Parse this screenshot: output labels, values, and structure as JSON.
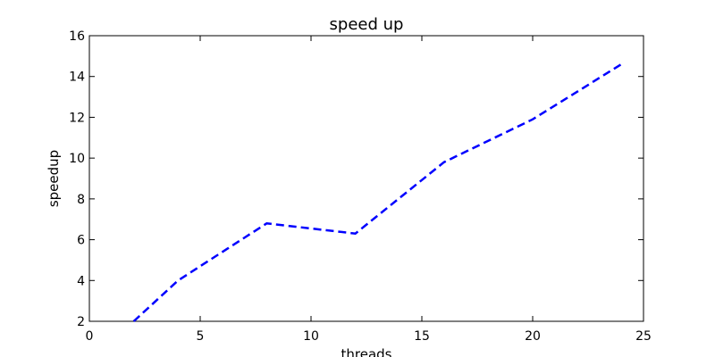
{
  "chart_data": {
    "type": "line",
    "title": "speed up",
    "xlabel": "threads",
    "ylabel": "speedup",
    "xlim": [
      0,
      25
    ],
    "ylim": [
      2,
      16
    ],
    "xticks": [
      0,
      5,
      10,
      15,
      20,
      25
    ],
    "yticks": [
      2,
      4,
      6,
      8,
      10,
      12,
      14,
      16
    ],
    "grid": false,
    "series": [
      {
        "color": "#0000ff",
        "linestyle": "dashed",
        "x": [
          2,
          4,
          8,
          12,
          16,
          20,
          24
        ],
        "y": [
          2.0,
          4.0,
          6.8,
          6.3,
          9.8,
          11.9,
          14.6
        ]
      }
    ]
  }
}
